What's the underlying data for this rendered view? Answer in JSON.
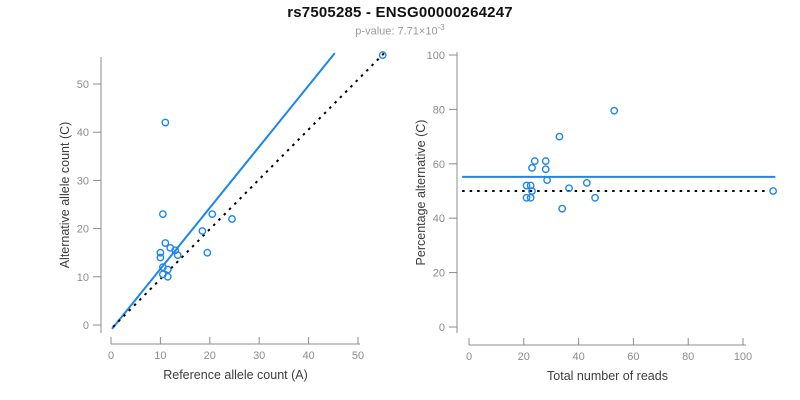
{
  "header": {
    "title": "rs7505285 - ENSG00000264247",
    "subtitle_base": "p-value: 7.71×10",
    "subtitle_exponent": "-3"
  },
  "colors": {
    "accent_blue": "#1C86EE",
    "identity_black": "#000000",
    "axis_gray": "#8C8C8C",
    "tick_label_gray": "#8C8C8C",
    "axis_title_dark": "#3D3D3D",
    "title_black": "#111111"
  },
  "chart_data": [
    {
      "type": "scatter",
      "title": "",
      "xlabel": "Reference allele count (A)",
      "ylabel": "Alternative allele count (C)",
      "xlim": [
        0,
        55
      ],
      "ylim": [
        0,
        57
      ],
      "xticks": [
        0,
        10,
        20,
        30,
        40,
        50
      ],
      "yticks": [
        0,
        10,
        20,
        30,
        40,
        50
      ],
      "grid": false,
      "legend": null,
      "points": [
        [
          11,
          42
        ],
        [
          10.5,
          23
        ],
        [
          20.5,
          23
        ],
        [
          24.5,
          22
        ],
        [
          18.5,
          19.5
        ],
        [
          11,
          17
        ],
        [
          12,
          16
        ],
        [
          13,
          15.5
        ],
        [
          10,
          15
        ],
        [
          10,
          14
        ],
        [
          13.5,
          14.5
        ],
        [
          19.5,
          15
        ],
        [
          10.5,
          12
        ],
        [
          11.5,
          11.5
        ],
        [
          10.5,
          10.5
        ],
        [
          11.5,
          10
        ],
        [
          55,
          56
        ]
      ],
      "lines": [
        {
          "name": "regression-line",
          "style": "solid",
          "color": "#1C86EE",
          "from": [
            0.2,
            -0.8
          ],
          "to": [
            45.3,
            56.4
          ]
        },
        {
          "name": "identity-line",
          "style": "dotted",
          "color": "#000000",
          "from": [
            0.4,
            -0.4
          ],
          "to": [
            55.3,
            56.4
          ]
        }
      ]
    },
    {
      "type": "scatter",
      "title": "",
      "xlabel": "Total number of reads",
      "ylabel": "Percentage alternative (C)",
      "xlim": [
        0,
        112
      ],
      "ylim": [
        0,
        100
      ],
      "xticks": [
        0,
        20,
        40,
        60,
        80,
        100
      ],
      "yticks": [
        0,
        20,
        40,
        60,
        80,
        100
      ],
      "grid": false,
      "legend": null,
      "points": [
        [
          53,
          79.5
        ],
        [
          33,
          70
        ],
        [
          28,
          61
        ],
        [
          24,
          61
        ],
        [
          23,
          58.5
        ],
        [
          28,
          58
        ],
        [
          28.5,
          54
        ],
        [
          43,
          53
        ],
        [
          21,
          52
        ],
        [
          22.5,
          52
        ],
        [
          36.5,
          51
        ],
        [
          23,
          50
        ],
        [
          21,
          47.5
        ],
        [
          22.5,
          47.5
        ],
        [
          46,
          47.5
        ],
        [
          34,
          43.5
        ],
        [
          111,
          50
        ]
      ],
      "lines": [
        {
          "name": "mean-percentage-line",
          "style": "solid",
          "color": "#1C86EE",
          "from": [
            -2.5,
            55.2
          ],
          "to": [
            111.8,
            55.2
          ]
        },
        {
          "name": "fifty-percent-line",
          "style": "dotted",
          "color": "#000000",
          "from": [
            -2.5,
            50
          ],
          "to": [
            110,
            50
          ]
        }
      ]
    }
  ]
}
